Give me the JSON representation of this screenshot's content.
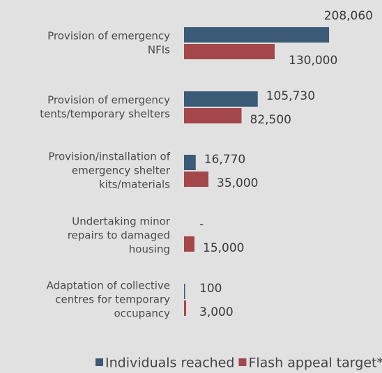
{
  "chart_data": {
    "type": "hbar",
    "categories": [
      [
        "Provision of emergency",
        "NFIs"
      ],
      [
        "Provision of emergency",
        "tents/temporary shelters"
      ],
      [
        "Provision/installation of",
        "emergency shelter",
        "kits/materials"
      ],
      [
        "Undertaking minor",
        "repairs to damaged",
        "housing"
      ],
      [
        "Adaptation of collective",
        "centres for temporary",
        "occupancy"
      ]
    ],
    "series": [
      {
        "name": "Individuals reached",
        "color": "#3a5a75",
        "values": [
          208060,
          105730,
          16770,
          0,
          100
        ],
        "value_labels": [
          "208,060",
          "105,730",
          "16,770",
          "-",
          "100"
        ]
      },
      {
        "name": "Flash appeal target*",
        "color": "#a3474b",
        "values": [
          130000,
          82500,
          35000,
          15000,
          3000
        ],
        "value_labels": [
          "130,000",
          "82,500",
          "35,000",
          "15,000",
          "3,000"
        ]
      }
    ],
    "xlim": [
      0,
      284000
    ],
    "legend": "bottom"
  }
}
